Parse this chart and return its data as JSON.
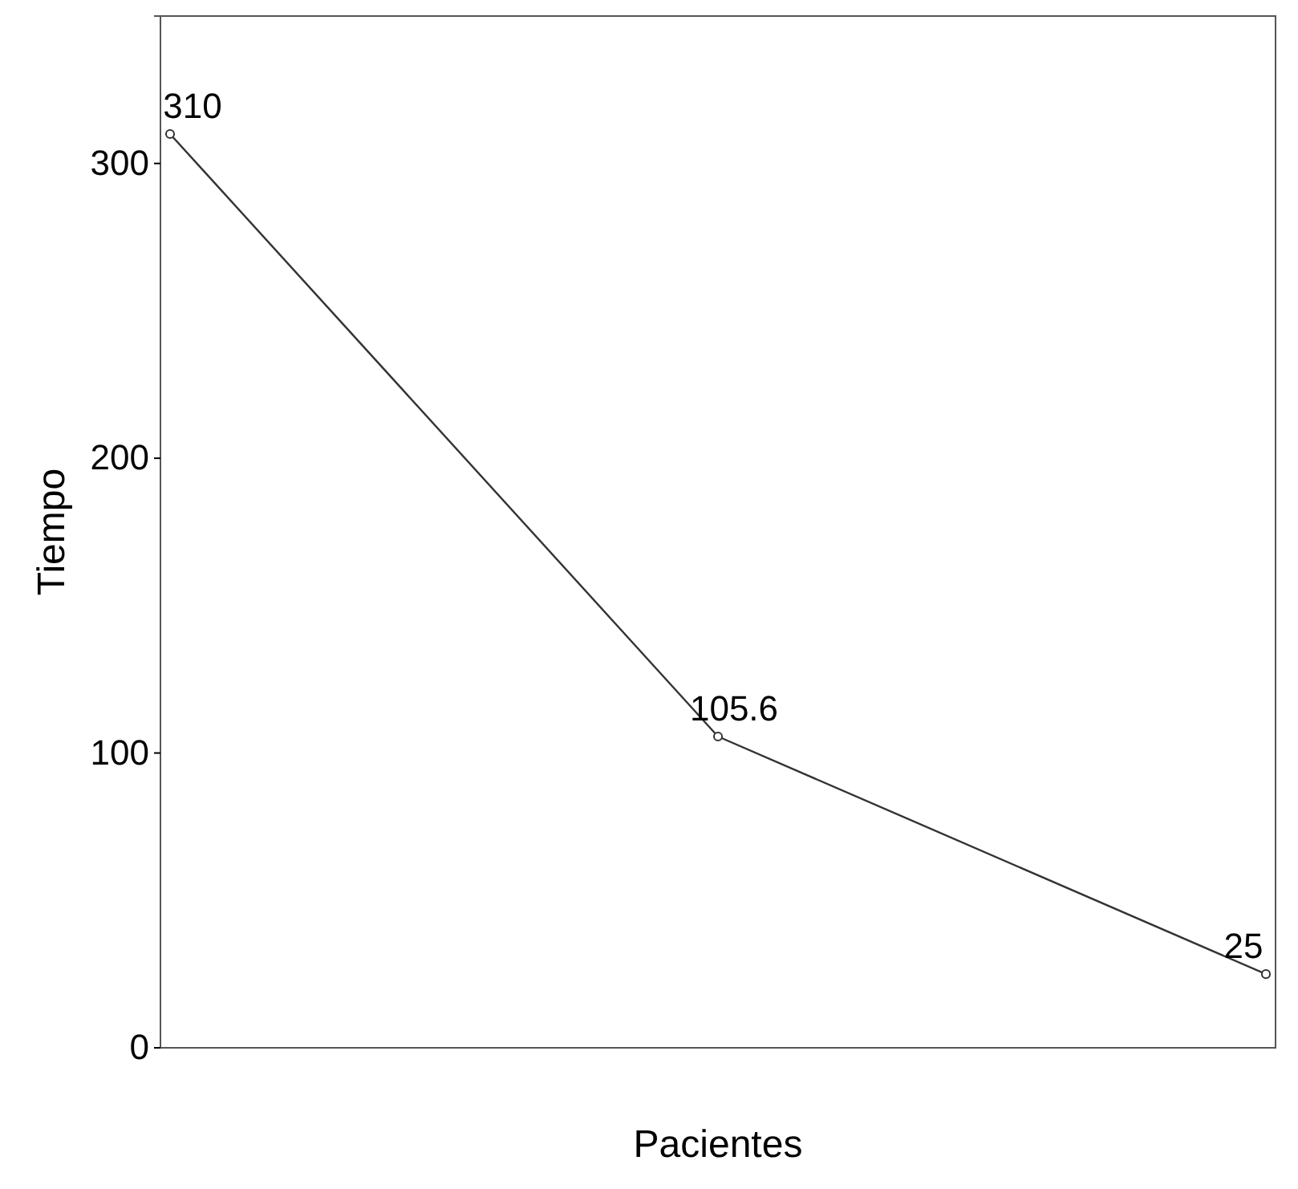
{
  "chart_data": {
    "type": "line",
    "xlabel": "Pacientes",
    "ylabel": "Tiempo",
    "categories": [
      null,
      null,
      null
    ],
    "series": [
      {
        "color": "#333333",
        "values": [
          310,
          105.6,
          25
        ]
      }
    ],
    "ylim": [
      0,
      350
    ],
    "yticks": [
      0,
      100,
      200,
      300
    ],
    "data_labels": true,
    "marker": "circle",
    "line_style": "solid",
    "grid": false
  }
}
